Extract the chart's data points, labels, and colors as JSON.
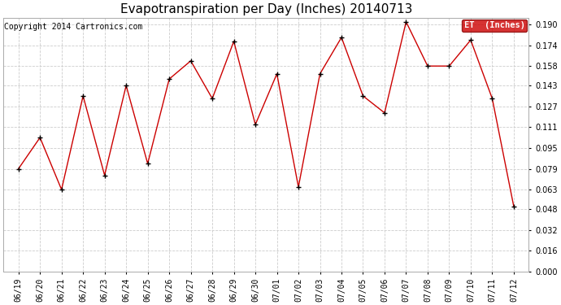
{
  "title": "Evapotranspiration per Day (Inches) 20140713",
  "copyright": "Copyright 2014 Cartronics.com",
  "legend_label": "ET  (Inches)",
  "dates": [
    "06/19",
    "06/20",
    "06/21",
    "06/22",
    "06/23",
    "06/24",
    "06/25",
    "06/26",
    "06/27",
    "06/28",
    "06/29",
    "06/30",
    "07/01",
    "07/02",
    "07/03",
    "07/04",
    "07/05",
    "07/06",
    "07/07",
    "07/08",
    "07/09",
    "07/10",
    "07/11",
    "07/12"
  ],
  "values": [
    0.079,
    0.103,
    0.063,
    0.135,
    0.074,
    0.143,
    0.083,
    0.148,
    0.162,
    0.133,
    0.177,
    0.113,
    0.152,
    0.065,
    0.152,
    0.18,
    0.135,
    0.122,
    0.192,
    0.158,
    0.158,
    0.178,
    0.133,
    0.05
  ],
  "line_color": "#cc0000",
  "marker": "+",
  "marker_color": "#000000",
  "bg_color": "#ffffff",
  "plot_bg_color": "#ffffff",
  "grid_color": "#cccccc",
  "ylim_max": 0.1952,
  "yticks": [
    0.0,
    0.016,
    0.032,
    0.048,
    0.063,
    0.079,
    0.095,
    0.111,
    0.127,
    0.143,
    0.158,
    0.174,
    0.19
  ],
  "title_fontsize": 11,
  "tick_fontsize": 7,
  "copyright_fontsize": 7,
  "legend_bg": "#cc0000",
  "legend_text_color": "#ffffff",
  "legend_fontsize": 7.5
}
